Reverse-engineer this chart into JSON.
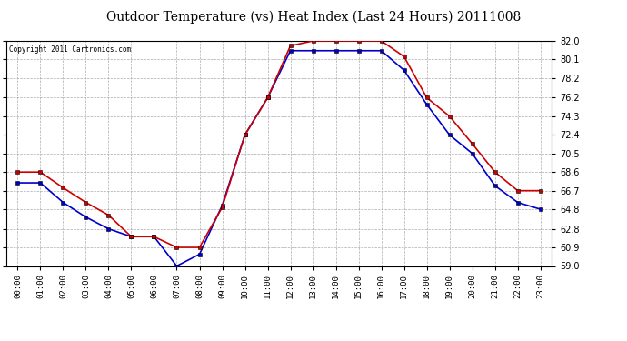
{
  "title": "Outdoor Temperature (vs) Heat Index (Last 24 Hours) 20111008",
  "copyright": "Copyright 2011 Cartronics.com",
  "hours": [
    "00:00",
    "01:00",
    "02:00",
    "03:00",
    "04:00",
    "05:00",
    "06:00",
    "07:00",
    "08:00",
    "09:00",
    "10:00",
    "11:00",
    "12:00",
    "13:00",
    "14:00",
    "15:00",
    "16:00",
    "17:00",
    "18:00",
    "19:00",
    "20:00",
    "21:00",
    "22:00",
    "23:00"
  ],
  "outdoor_temp": [
    67.5,
    67.5,
    65.5,
    64.0,
    62.8,
    62.0,
    62.0,
    59.0,
    60.2,
    65.2,
    72.4,
    76.2,
    81.0,
    81.0,
    81.0,
    81.0,
    81.0,
    79.0,
    75.5,
    72.4,
    70.5,
    67.2,
    65.5,
    64.8
  ],
  "heat_index": [
    68.6,
    68.6,
    67.0,
    65.5,
    64.2,
    62.0,
    62.0,
    60.9,
    60.9,
    65.0,
    72.4,
    76.2,
    81.5,
    82.0,
    82.0,
    82.0,
    82.0,
    80.4,
    76.2,
    74.3,
    71.5,
    68.6,
    66.7,
    66.7
  ],
  "outdoor_color": "#0000cc",
  "heatindex_color": "#cc0000",
  "yticks": [
    59.0,
    60.9,
    62.8,
    64.8,
    66.7,
    68.6,
    70.5,
    72.4,
    74.3,
    76.2,
    78.2,
    80.1,
    82.0
  ],
  "ymin": 59.0,
  "ymax": 82.0,
  "bg_color": "#ffffff",
  "plot_bg_color": "#ffffff",
  "grid_color": "#aaaaaa",
  "title_fontsize": 10,
  "marker": "s",
  "marker_size": 3,
  "line_width": 1.2
}
